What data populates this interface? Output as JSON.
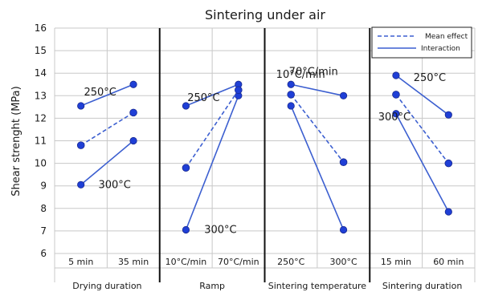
{
  "chart_data": {
    "type": "line",
    "title": "Sintering under air",
    "ylabel": "Shear strenght (MPa)",
    "ylim": [
      6,
      16
    ],
    "yticks": [
      6,
      7,
      8,
      9,
      10,
      11,
      12,
      13,
      14,
      15,
      16
    ],
    "grid": true,
    "legend": {
      "position": "top-right",
      "entries": [
        {
          "label": "Mean effect",
          "style": "dashed"
        },
        {
          "label": "Interaction",
          "style": "solid"
        }
      ]
    },
    "colors": {
      "line": "#3c5fd0",
      "marker": "#1f3fd6",
      "marker_edge": "#1a2a8f",
      "divider": "#111111",
      "grid": "#c8c8c8"
    },
    "panels": [
      {
        "factor": "Drying duration",
        "levels": [
          "5 min",
          "35 min"
        ],
        "mean_effect": [
          10.8,
          12.25
        ],
        "interaction": [
          {
            "label": "250°C",
            "values": [
              12.55,
              13.5
            ]
          },
          {
            "label": "300°C",
            "values": [
              9.05,
              11.0
            ]
          }
        ]
      },
      {
        "factor": "Ramp",
        "levels": [
          "10°C/min",
          "70°C/min"
        ],
        "mean_effect": [
          9.8,
          13.25
        ],
        "interaction": [
          {
            "label": "250°C",
            "values": [
              12.55,
              13.5
            ]
          },
          {
            "label": "300°C",
            "values": [
              7.05,
              13.0
            ]
          }
        ]
      },
      {
        "factor": "Sintering temperature",
        "levels": [
          "250°C",
          "300°C"
        ],
        "mean_effect": [
          13.05,
          10.05
        ],
        "interaction": [
          {
            "label": "70°C/min",
            "values": [
              13.5,
              13.0
            ]
          },
          {
            "label": "10°C/min",
            "values": [
              12.55,
              7.05
            ]
          }
        ]
      },
      {
        "factor": "Sintering duration",
        "levels": [
          "15 min",
          "60 min"
        ],
        "mean_effect": [
          13.05,
          10.0
        ],
        "interaction": [
          {
            "label": "250°C",
            "values": [
              13.9,
              12.15
            ]
          },
          {
            "label": "300°C",
            "values": [
              12.2,
              7.85
            ]
          }
        ]
      }
    ]
  }
}
